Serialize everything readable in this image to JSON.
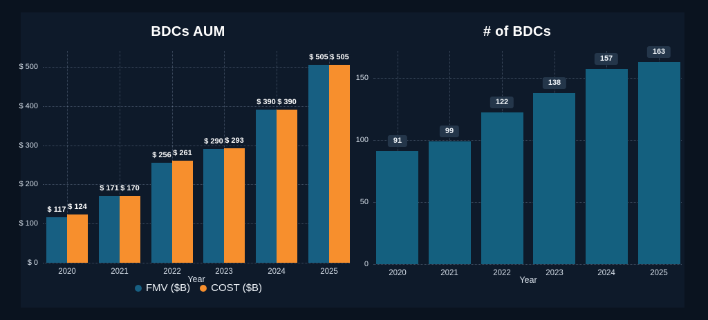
{
  "background": {
    "outer": "#0a131f",
    "panel": "#0e1a2a"
  },
  "chart_data": [
    {
      "type": "bar",
      "title": "BDCs AUM",
      "xlabel": "Year",
      "categories": [
        "2020",
        "2021",
        "2022",
        "2023",
        "2024",
        "2025"
      ],
      "series": [
        {
          "name": "FMV ($B)",
          "color": "#175f82",
          "values": [
            117,
            171,
            256,
            290,
            390,
            505
          ],
          "labels": [
            "$ 117",
            "$ 171",
            "$ 256",
            "$ 290",
            "$ 390",
            "$ 505"
          ]
        },
        {
          "name": "COST ($B)",
          "color": "#f78f2d",
          "values": [
            124,
            170,
            261,
            293,
            390,
            505
          ],
          "labels": [
            "$ 124",
            "$ 170",
            "$ 261",
            "$ 293",
            "$ 390",
            "$ 505"
          ]
        }
      ],
      "ylim": [
        0,
        530
      ],
      "yticks": [
        {
          "value": 0,
          "label": "$ 0"
        },
        {
          "value": 100,
          "label": "$ 100"
        },
        {
          "value": 200,
          "label": "$ 200"
        },
        {
          "value": 300,
          "label": "$ 300"
        },
        {
          "value": 400,
          "label": "$ 400"
        },
        {
          "value": 500,
          "label": "$ 500"
        }
      ],
      "grid": true,
      "legend_position": "bottom",
      "value_label_style": "plain"
    },
    {
      "type": "bar",
      "title": "# of BDCs",
      "xlabel": "Year",
      "categories": [
        "2020",
        "2021",
        "2022",
        "2023",
        "2024",
        "2025"
      ],
      "series": [
        {
          "name": "# of BDCs",
          "color": "#14607f",
          "values": [
            91,
            99,
            122,
            138,
            157,
            163
          ],
          "labels": [
            "91",
            "99",
            "122",
            "138",
            "157",
            "163"
          ]
        }
      ],
      "ylim": [
        0,
        166
      ],
      "yticks": [
        {
          "value": 0,
          "label": "0"
        },
        {
          "value": 50,
          "label": "50"
        },
        {
          "value": 100,
          "label": "100"
        },
        {
          "value": 150,
          "label": "150"
        }
      ],
      "grid": true,
      "legend_position": "none",
      "value_label_style": "badge"
    }
  ]
}
